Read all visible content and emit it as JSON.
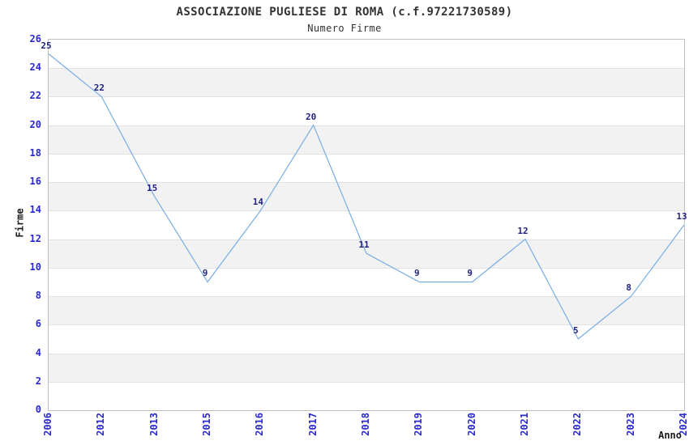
{
  "title": "ASSOCIAZIONE PUGLIESE DI ROMA (c.f.97221730589)",
  "subtitle": "Numero Firme",
  "chart_data": {
    "type": "line",
    "categories": [
      "2006",
      "2012",
      "2013",
      "2015",
      "2016",
      "2017",
      "2018",
      "2019",
      "2020",
      "2021",
      "2022",
      "2023",
      "2024"
    ],
    "values": [
      25,
      22,
      15,
      9,
      14,
      20,
      11,
      9,
      9,
      12,
      5,
      8,
      13
    ],
    "title": "ASSOCIAZIONE PUGLIESE DI ROMA (c.f.97221730589)",
    "subtitle": "Numero Firme",
    "xlabel": "Anno",
    "ylabel": "Firme",
    "ylim": [
      0,
      26
    ],
    "yticks": [
      0,
      2,
      4,
      6,
      8,
      10,
      12,
      14,
      16,
      18,
      20,
      22,
      24,
      26
    ],
    "ytick_step": 2,
    "grid": "horizontal-bands-alternating",
    "legend": "none",
    "point_markers": false,
    "data_labels": true,
    "colors": {
      "line": "#79ade4",
      "point_label": "#232382",
      "tick_label": "#2929cc",
      "axis_text": "#1a1a1a",
      "title_text": "#333333",
      "band_fill": "#f2f2f2",
      "grid_line": "#e2e2e2",
      "plot_border": "#bfbfbf",
      "background": "#ffffff"
    }
  }
}
